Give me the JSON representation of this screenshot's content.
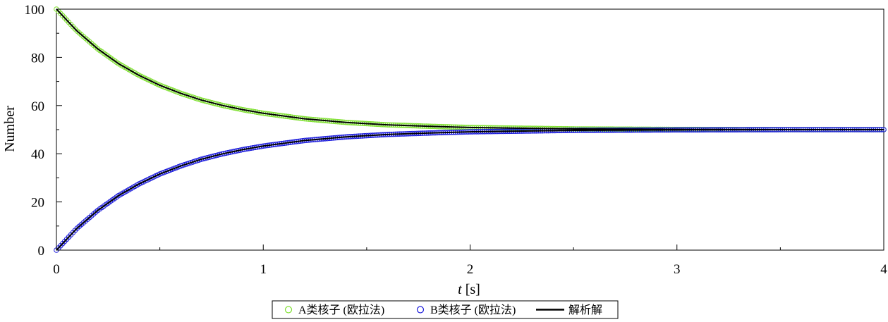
{
  "chart_data": {
    "type": "scatter",
    "xlabel_var": "t",
    "xlabel_unit": " [s]",
    "ylabel": "Number",
    "xlim": [
      0,
      4
    ],
    "ylim": [
      0,
      100
    ],
    "x_ticks": [
      0,
      1,
      2,
      3,
      4
    ],
    "x_tick_labels": [
      "0",
      "1",
      "2",
      "3",
      "4"
    ],
    "y_ticks": [
      0,
      20,
      40,
      60,
      80,
      100
    ],
    "y_tick_labels": [
      "0",
      "20",
      "40",
      "60",
      "80",
      "100"
    ],
    "grid": false,
    "legend_position": "bottom-center",
    "series": [
      {
        "name": "A类核子 (欧拉法)",
        "marker": "circle-open",
        "color": "#7fe030",
        "x": [
          0,
          0.1,
          0.2,
          0.3,
          0.4,
          0.5,
          0.6,
          0.7,
          0.8,
          0.9,
          1.0,
          1.2,
          1.4,
          1.6,
          1.8,
          2.0,
          2.5,
          3.0,
          3.5,
          4.0
        ],
        "y": [
          100,
          90.9,
          83.5,
          77.4,
          72.5,
          68.4,
          65.1,
          62.3,
          60.1,
          58.3,
          56.8,
          54.5,
          53.0,
          52.0,
          51.4,
          50.9,
          50.3,
          50.1,
          50.0,
          50.0
        ]
      },
      {
        "name": "B类核子 (欧拉法)",
        "marker": "circle-open",
        "color": "#1a1adc",
        "x": [
          0,
          0.1,
          0.2,
          0.3,
          0.4,
          0.5,
          0.6,
          0.7,
          0.8,
          0.9,
          1.0,
          1.2,
          1.4,
          1.6,
          1.8,
          2.0,
          2.5,
          3.0,
          3.5,
          4.0
        ],
        "y": [
          0,
          9.1,
          16.5,
          22.6,
          27.5,
          31.6,
          34.9,
          37.7,
          39.9,
          41.7,
          43.2,
          45.5,
          47.0,
          48.0,
          48.6,
          49.1,
          49.7,
          49.9,
          50.0,
          50.0
        ]
      },
      {
        "name": "解析解",
        "marker": "line",
        "color": "#000000",
        "x": [
          0,
          0.1,
          0.2,
          0.3,
          0.4,
          0.5,
          0.6,
          0.7,
          0.8,
          0.9,
          1.0,
          1.2,
          1.4,
          1.6,
          1.8,
          2.0,
          2.5,
          3.0,
          3.5,
          4.0
        ],
        "y": [
          100,
          90.9,
          83.5,
          77.4,
          72.5,
          68.4,
          65.1,
          62.3,
          60.1,
          58.3,
          56.8,
          54.5,
          53.0,
          52.0,
          51.4,
          50.9,
          50.3,
          50.1,
          50.0,
          50.0
        ]
      },
      {
        "name": "",
        "marker": "line",
        "color": "#000000",
        "x": [
          0,
          0.1,
          0.2,
          0.3,
          0.4,
          0.5,
          0.6,
          0.7,
          0.8,
          0.9,
          1.0,
          1.2,
          1.4,
          1.6,
          1.8,
          2.0,
          2.5,
          3.0,
          3.5,
          4.0
        ],
        "y": [
          0,
          9.1,
          16.5,
          22.6,
          27.5,
          31.6,
          34.9,
          37.7,
          39.9,
          41.7,
          43.2,
          45.5,
          47.0,
          48.0,
          48.6,
          49.1,
          49.7,
          49.9,
          50.0,
          50.0
        ]
      }
    ]
  }
}
